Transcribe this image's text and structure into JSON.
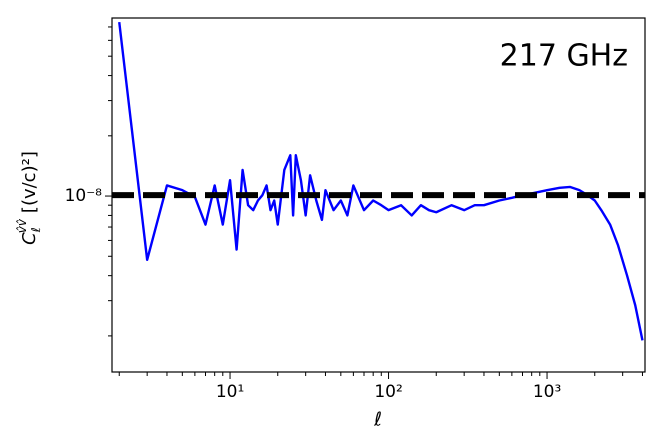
{
  "chart_data": {
    "type": "line",
    "annotation": "217 GHz",
    "xlabel": "ℓ",
    "ylabel": {
      "symbol": "C",
      "sub": "ℓ",
      "sup": "v̂v̂",
      "unit": "[(v/c)²]"
    },
    "log_x": true,
    "log_y": true,
    "xlim": [
      1.8,
      4150
    ],
    "ylim": [
      1.32e-09,
      7.76e-08
    ],
    "xticks": [
      {
        "value": 10,
        "label": "10¹"
      },
      {
        "value": 100,
        "label": "10²"
      },
      {
        "value": 1000,
        "label": "10³"
      }
    ],
    "xticks_minor": [
      2,
      3,
      4,
      5,
      6,
      7,
      8,
      9,
      20,
      30,
      40,
      50,
      60,
      70,
      80,
      90,
      200,
      300,
      400,
      500,
      600,
      700,
      800,
      900,
      2000,
      3000,
      4000
    ],
    "yticks": [
      {
        "value": 1e-08,
        "label": "10⁻⁸"
      }
    ],
    "yticks_minor": [
      2e-09,
      3e-09,
      4e-09,
      5e-09,
      6e-09,
      7e-09,
      8e-09,
      9e-09,
      2e-08,
      3e-08,
      4e-08,
      5e-08,
      6e-08,
      7e-08
    ],
    "x": [
      2,
      3,
      4,
      5,
      6,
      7,
      8,
      9,
      10,
      11,
      12,
      13,
      14,
      15,
      16,
      17,
      18,
      19,
      20,
      22,
      24,
      25,
      26,
      28,
      30,
      32,
      35,
      38,
      40,
      45,
      50,
      55,
      60,
      70,
      80,
      90,
      100,
      120,
      140,
      160,
      180,
      200,
      250,
      300,
      350,
      400,
      500,
      600,
      700,
      800,
      1000,
      1200,
      1400,
      1600,
      1800,
      2000,
      2200,
      2500,
      2800,
      3200,
      3600,
      4000
    ],
    "series": [
      {
        "color": "#0000ff",
        "values": [
          7.4e-08,
          4.8e-09,
          1.13e-08,
          1.07e-08,
          9.9e-09,
          7.2e-09,
          1.13e-08,
          7.2e-09,
          1.2e-08,
          5.4e-09,
          1.35e-08,
          9e-09,
          8.5e-09,
          9.5e-09,
          1.01e-08,
          1.13e-08,
          8.5e-09,
          9.5e-09,
          7.2e-09,
          1.35e-08,
          1.6e-08,
          8e-09,
          1.6e-08,
          1.2e-08,
          8e-09,
          1.27e-08,
          9.5e-09,
          7.6e-09,
          1.07e-08,
          8.5e-09,
          9.5e-09,
          8e-09,
          1.13e-08,
          8.5e-09,
          9.5e-09,
          9e-09,
          8.5e-09,
          9e-09,
          8e-09,
          9e-09,
          8.5e-09,
          8.3e-09,
          9e-09,
          8.5e-09,
          9e-09,
          9e-09,
          9.5e-09,
          9.8e-09,
          1.01e-08,
          1.03e-08,
          1.07e-08,
          1.1e-08,
          1.11e-08,
          1.07e-08,
          1.01e-08,
          9.5e-09,
          8.5e-09,
          7.2e-09,
          5.7e-09,
          4e-09,
          2.85e-09,
          1.9e-09
        ]
      }
    ],
    "reference_line": {
      "value": 1.01e-08,
      "color": "#000000"
    }
  }
}
